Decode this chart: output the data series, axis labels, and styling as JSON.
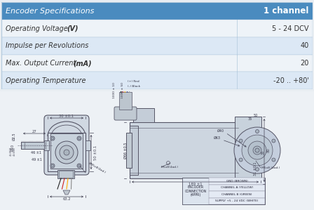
{
  "header_bg": "#4a8bbf",
  "header_text": "Encoder Specifications",
  "header_value": "1 channel",
  "header_text_color": "#ffffff",
  "header_value_color": "#ffffff",
  "row_bg_alt": "#dce8f5",
  "row_bg_white": "#eef3f8",
  "table_border": "#b0c8dc",
  "rows": [
    {
      "label": "Operating Voltage (V)",
      "value": "5 - 24 DCV"
    },
    {
      "label": "Impulse per Revolutions",
      "value": "40"
    },
    {
      "label": "Max. Output Current (mA)",
      "value": "20"
    },
    {
      "label": "Operating Temperature",
      "value": "-20 .. +80'"
    }
  ],
  "fig_bg": "#e8edf2",
  "diag_bg": "#edf1f5",
  "line_color": "#555566",
  "dim_color": "#444455",
  "text_color": "#333344"
}
